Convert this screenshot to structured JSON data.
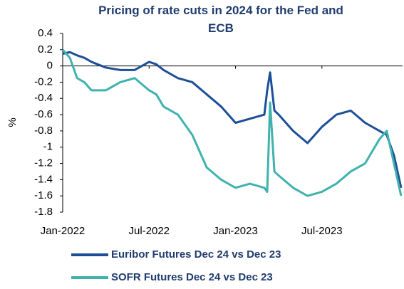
{
  "chart_data": {
    "type": "line",
    "title": "Pricing of rate cuts in 2024 for the Fed and ECB",
    "y_label": "%",
    "x": [
      0,
      0.5,
      1,
      1.5,
      2,
      3,
      4,
      5,
      6,
      6.5,
      7,
      8,
      9,
      10,
      11,
      12,
      13,
      14,
      14.2,
      14.4,
      14.7,
      15,
      16,
      17,
      18,
      19,
      20,
      21,
      22,
      22.5,
      23,
      23.5
    ],
    "series": [
      {
        "name": "Euribor Futures Dec 24 vs Dec 23",
        "color": "#1c4f97",
        "values": [
          0.15,
          0.17,
          0.13,
          0.1,
          0.05,
          -0.02,
          -0.05,
          -0.05,
          0.05,
          0.02,
          -0.05,
          -0.15,
          -0.2,
          -0.35,
          -0.5,
          -0.7,
          -0.65,
          -0.6,
          -0.3,
          -0.08,
          -0.55,
          -0.6,
          -0.8,
          -0.95,
          -0.75,
          -0.6,
          -0.55,
          -0.7,
          -0.8,
          -0.85,
          -1.1,
          -1.5
        ]
      },
      {
        "name": "SOFR Futures Dec 24 vs Dec 23",
        "color": "#3fb2ae",
        "values": [
          0.2,
          0.1,
          -0.15,
          -0.2,
          -0.3,
          -0.3,
          -0.2,
          -0.15,
          -0.3,
          -0.35,
          -0.5,
          -0.6,
          -0.85,
          -1.25,
          -1.4,
          -1.5,
          -1.45,
          -1.5,
          -1.55,
          -0.45,
          -1.3,
          -1.35,
          -1.5,
          -1.6,
          -1.55,
          -1.45,
          -1.3,
          -1.2,
          -0.9,
          -0.8,
          -1.2,
          -1.6
        ]
      }
    ],
    "xlim": [
      0,
      23.6
    ],
    "xticks": [
      {
        "value": 0,
        "label": "Jan-2022"
      },
      {
        "value": 6,
        "label": "Jul-2022"
      },
      {
        "value": 12,
        "label": "Jan-2023"
      },
      {
        "value": 18,
        "label": "Jul-2023"
      }
    ],
    "ylim": [
      -1.8,
      0.4
    ],
    "yticks": [
      0.4,
      0.2,
      0,
      -0.2,
      -0.4,
      -0.6,
      -0.8,
      -1,
      -1.2,
      -1.4,
      -1.6,
      -1.8
    ]
  }
}
